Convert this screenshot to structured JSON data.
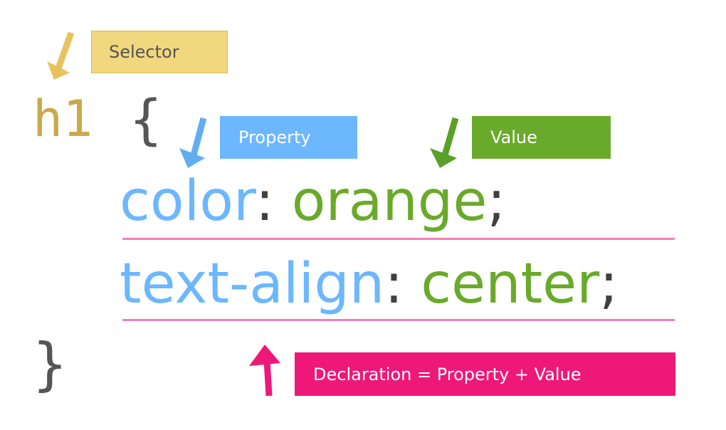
{
  "colors": {
    "selector": "#c9a94a",
    "selector_box_bg": "#f1d77e",
    "selector_box_border": "#d9bf5f",
    "selector_box_text": "#555555",
    "brace": "#555555",
    "property": "#6cb7ff",
    "property_box_bg": "#6cb7ff",
    "value": "#6aaa2a",
    "value_box_bg": "#6aaa2a",
    "punctuation": "#404040",
    "declaration": "#ee1879",
    "underline": "#f17fb8",
    "box_text_light": "#ffffff"
  },
  "labels": {
    "selector": "Selector",
    "property": "Property",
    "value": "Value",
    "declaration": "Declaration = Property + Value"
  },
  "code": {
    "selector": "h1",
    "open_brace": "{",
    "close_brace": "}",
    "declarations": [
      {
        "property": "color",
        "colon": ":",
        "value": "orange",
        "semicolon": ";"
      },
      {
        "property": "text-align",
        "colon": ":",
        "value": "center",
        "semicolon": ";"
      }
    ]
  },
  "icons": {
    "selector_arrow": "arrow-down-left-icon",
    "property_arrow": "arrow-down-left-icon",
    "value_arrow": "arrow-down-left-icon",
    "declaration_arrow": "arrow-up-icon"
  }
}
